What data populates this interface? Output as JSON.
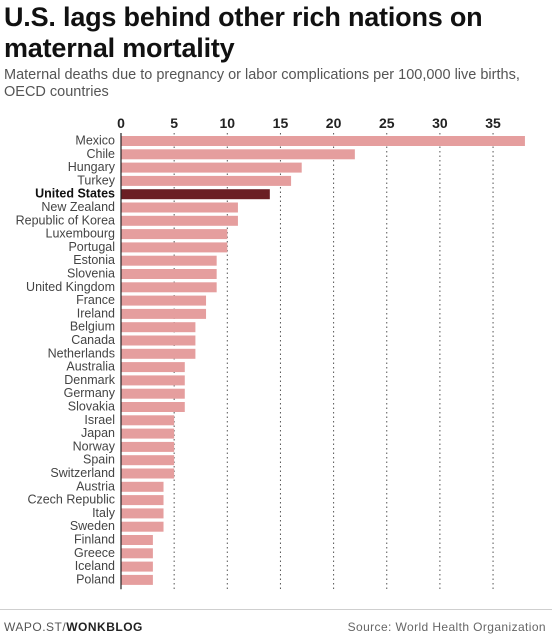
{
  "chart_data": {
    "type": "bar",
    "orientation": "horizontal",
    "title": "U.S. lags behind other rich nations on maternal mortality",
    "subtitle": "Maternal deaths due to pregnancy or labor complications per 100,000 live births, OECD countries",
    "xlim": [
      0,
      38
    ],
    "xticks": [
      0,
      5,
      10,
      15,
      20,
      25,
      30,
      35
    ],
    "grid": "vertical dotted",
    "highlight": "United States",
    "colors": {
      "bar": "#e59e9e",
      "highlight_bar": "#6b1f24"
    },
    "categories": [
      "Mexico",
      "Chile",
      "Hungary",
      "Turkey",
      "United States",
      "New Zealand",
      "Republic of Korea",
      "Luxembourg",
      "Portugal",
      "Estonia",
      "Slovenia",
      "United Kingdom",
      "France",
      "Ireland",
      "Belgium",
      "Canada",
      "Netherlands",
      "Australia",
      "Denmark",
      "Germany",
      "Slovakia",
      "Israel",
      "Japan",
      "Norway",
      "Spain",
      "Switzerland",
      "Austria",
      "Czech Republic",
      "Italy",
      "Sweden",
      "Finland",
      "Greece",
      "Iceland",
      "Poland"
    ],
    "values": [
      38,
      22,
      17,
      16,
      14,
      11,
      11,
      10,
      10,
      9,
      9,
      9,
      8,
      8,
      7,
      7,
      7,
      6,
      6,
      6,
      6,
      5,
      5,
      5,
      5,
      5,
      4,
      4,
      4,
      4,
      3,
      3,
      3,
      3
    ]
  },
  "footer": {
    "credit_prefix": "WAPO.ST/",
    "credit_brand": "WONKBLOG",
    "source": "Source: World Health Organization"
  }
}
